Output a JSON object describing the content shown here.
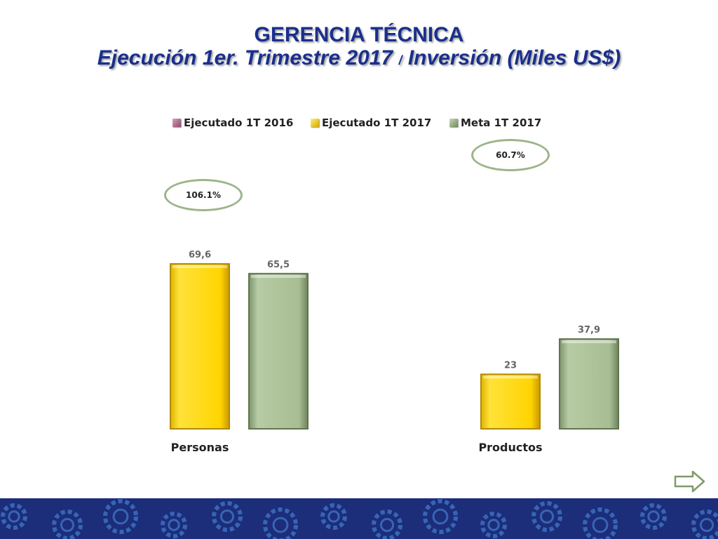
{
  "header": {
    "title": "GERENCIA TÉCNICA",
    "subtitle_part1": "Ejecución 1er. Trimestre 2017",
    "subtitle_sep": "/",
    "subtitle_part2": "Inversión (Miles US$)"
  },
  "annotations": {
    "personas_pct": "106.1%",
    "productos_pct": "60.7%"
  },
  "colors": {
    "title": "#1a2f8c",
    "series_2016": "#b06a8c",
    "series_2017": "#ffd700",
    "series_meta": "#a9bf94",
    "oval": "#9db48a",
    "footer": "#1c2d7a",
    "footer_gear": "#3c6fc0"
  },
  "icons": {
    "next": "arrow-right-icon",
    "footer": "gear-icon"
  },
  "chart_data": {
    "type": "bar",
    "title": "Ejecución 1er. Trimestre 2017 / Inversión (Miles US$)",
    "categories": [
      "Personas",
      "Productos"
    ],
    "legend_position": "top",
    "ylim": [
      0,
      80
    ],
    "grid": false,
    "series": [
      {
        "name": "Ejecutado 1T 2016",
        "values": [
          null,
          null
        ],
        "labels": [
          "",
          ""
        ]
      },
      {
        "name": "Ejecutado 1T 2017",
        "values": [
          69.6,
          23
        ],
        "labels": [
          "69,6",
          "23"
        ]
      },
      {
        "name": "Meta 1T 2017",
        "values": [
          65.5,
          37.9
        ],
        "labels": [
          "65,5",
          "37,9"
        ]
      }
    ]
  }
}
